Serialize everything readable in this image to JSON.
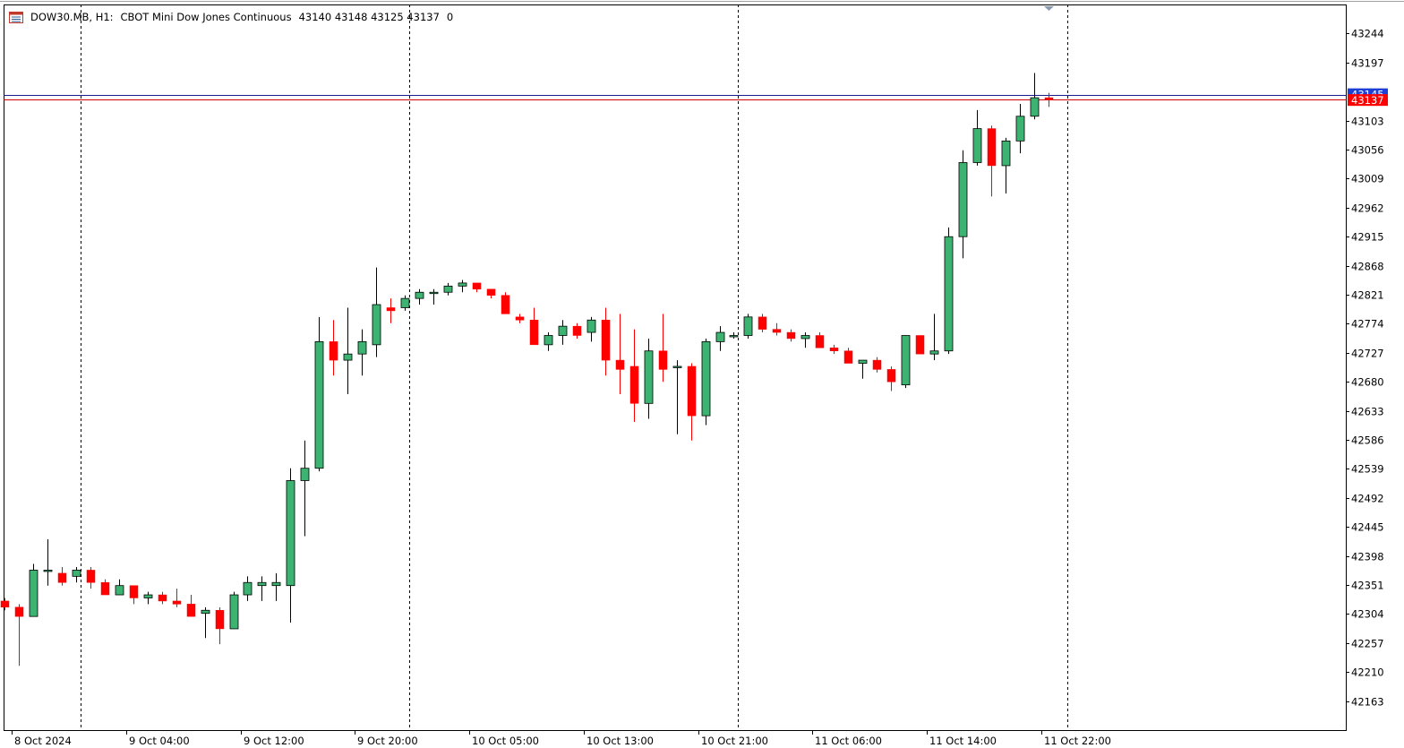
{
  "header": {
    "symbol_timeframe": "DOW30.MB, H1:",
    "instrument": "CBOT Mini Dow Jones Continuous",
    "ohlc": "43140 43148 43125 43137",
    "volume": "0",
    "icon": "chart-window-icon"
  },
  "colors": {
    "bull": "#3cb371",
    "bear": "#ff0000",
    "wick": "#000000",
    "ask_line": "#1c1c8c",
    "bid_line": "#cc0000",
    "bid_label_bg": "#ff0000",
    "ask_label_bg": "#1c3fd6"
  },
  "chart_data": {
    "type": "candlestick",
    "ylim": [
      42116,
      43291
    ],
    "y_ticks": [
      43244,
      43197,
      43103,
      43056,
      43009,
      42962,
      42915,
      42868,
      42821,
      42774,
      42727,
      42680,
      42633,
      42586,
      42539,
      42492,
      42445,
      42398,
      42351,
      42304,
      42257,
      42210,
      42163
    ],
    "x_labels": [
      {
        "bar": 0.5,
        "label": "8 Oct 2024"
      },
      {
        "bar": 8.5,
        "label": "9 Oct 04:00"
      },
      {
        "bar": 16.5,
        "label": "9 Oct 12:00"
      },
      {
        "bar": 24.5,
        "label": "9 Oct 20:00"
      },
      {
        "bar": 32.5,
        "label": "10 Oct 05:00"
      },
      {
        "bar": 40.5,
        "label": "10 Oct 13:00"
      },
      {
        "bar": 48.5,
        "label": "10 Oct 21:00"
      },
      {
        "bar": 56.5,
        "label": "11 Oct 06:00"
      },
      {
        "bar": 64.5,
        "label": "11 Oct 14:00"
      },
      {
        "bar": 72.5,
        "label": "11 Oct 22:00"
      }
    ],
    "day_separators": [
      5.3,
      28.3,
      51.3,
      74.3
    ],
    "bid": 43137,
    "ask": 43145,
    "bid_label": "43137",
    "ask_label": "43145",
    "ohlc": [
      [
        42325,
        42330,
        42310,
        42315
      ],
      [
        42315,
        42320,
        42220,
        42300
      ],
      [
        42300,
        42385,
        42300,
        42375
      ],
      [
        42375,
        42425,
        42350,
        42375
      ],
      [
        42370,
        42380,
        42350,
        42355
      ],
      [
        42365,
        42380,
        42355,
        42375
      ],
      [
        42375,
        42380,
        42345,
        42355
      ],
      [
        42355,
        42360,
        42335,
        42335
      ],
      [
        42335,
        42360,
        42335,
        42350
      ],
      [
        42350,
        42350,
        42320,
        42330
      ],
      [
        42330,
        42340,
        42320,
        42335
      ],
      [
        42335,
        42340,
        42320,
        42325
      ],
      [
        42325,
        42345,
        42315,
        42320
      ],
      [
        42320,
        42335,
        42300,
        42300
      ],
      [
        42305,
        42315,
        42265,
        42310
      ],
      [
        42310,
        42315,
        42255,
        42280
      ],
      [
        42280,
        42340,
        42280,
        42335
      ],
      [
        42335,
        42365,
        42325,
        42355
      ],
      [
        42350,
        42365,
        42325,
        42355
      ],
      [
        42350,
        42370,
        42325,
        42355
      ],
      [
        42350,
        42540,
        42290,
        42520
      ],
      [
        42520,
        42585,
        42430,
        42540
      ],
      [
        42540,
        42785,
        42535,
        42745
      ],
      [
        42745,
        42780,
        42690,
        42715
      ],
      [
        42715,
        42800,
        42660,
        42725
      ],
      [
        42725,
        42765,
        42690,
        42745
      ],
      [
        42740,
        42865,
        42720,
        42805
      ],
      [
        42800,
        42815,
        42775,
        42795
      ],
      [
        42800,
        42820,
        42795,
        42815
      ],
      [
        42815,
        42830,
        42805,
        42825
      ],
      [
        42825,
        42830,
        42805,
        42825
      ],
      [
        42825,
        42840,
        42820,
        42835
      ],
      [
        42835,
        42845,
        42825,
        42840
      ],
      [
        42840,
        42840,
        42825,
        42830
      ],
      [
        42830,
        42825,
        42815,
        42820
      ],
      [
        42820,
        42825,
        42790,
        42790
      ],
      [
        42785,
        42790,
        42775,
        42780
      ],
      [
        42780,
        42800,
        42740,
        42740
      ],
      [
        42740,
        42760,
        42730,
        42755
      ],
      [
        42755,
        42780,
        42740,
        42770
      ],
      [
        42770,
        42775,
        42750,
        42755
      ],
      [
        42760,
        42785,
        42745,
        42780
      ],
      [
        42780,
        42800,
        42690,
        42715
      ],
      [
        42715,
        42790,
        42660,
        42700
      ],
      [
        42705,
        42765,
        42615,
        42645
      ],
      [
        42645,
        42750,
        42620,
        42730
      ],
      [
        42730,
        42790,
        42680,
        42700
      ],
      [
        42705,
        42715,
        42595,
        42705
      ],
      [
        42705,
        42710,
        42585,
        42625
      ],
      [
        42625,
        42750,
        42610,
        42745
      ],
      [
        42745,
        42770,
        42730,
        42760
      ],
      [
        42755,
        42760,
        42750,
        42755
      ],
      [
        42755,
        42790,
        42750,
        42785
      ],
      [
        42785,
        42790,
        42760,
        42765
      ],
      [
        42765,
        42775,
        42755,
        42760
      ],
      [
        42760,
        42765,
        42745,
        42750
      ],
      [
        42750,
        42760,
        42735,
        42755
      ],
      [
        42755,
        42760,
        42735,
        42735
      ],
      [
        42735,
        42740,
        42725,
        42730
      ],
      [
        42730,
        42735,
        42710,
        42710
      ],
      [
        42710,
        42715,
        42685,
        42715
      ],
      [
        42715,
        42720,
        42695,
        42700
      ],
      [
        42700,
        42705,
        42665,
        42680
      ],
      [
        42675,
        42755,
        42670,
        42755
      ],
      [
        42755,
        42755,
        42725,
        42725
      ],
      [
        42725,
        42790,
        42715,
        42730
      ],
      [
        42730,
        42930,
        42725,
        42915
      ],
      [
        42915,
        43055,
        42880,
        43035
      ],
      [
        43035,
        43120,
        43030,
        43090
      ],
      [
        43090,
        43095,
        42980,
        43030
      ],
      [
        43030,
        43075,
        42985,
        43070
      ],
      [
        43070,
        43130,
        43050,
        43110
      ],
      [
        43110,
        43180,
        43105,
        43140
      ],
      [
        43140,
        43148,
        43125,
        43137
      ]
    ]
  }
}
